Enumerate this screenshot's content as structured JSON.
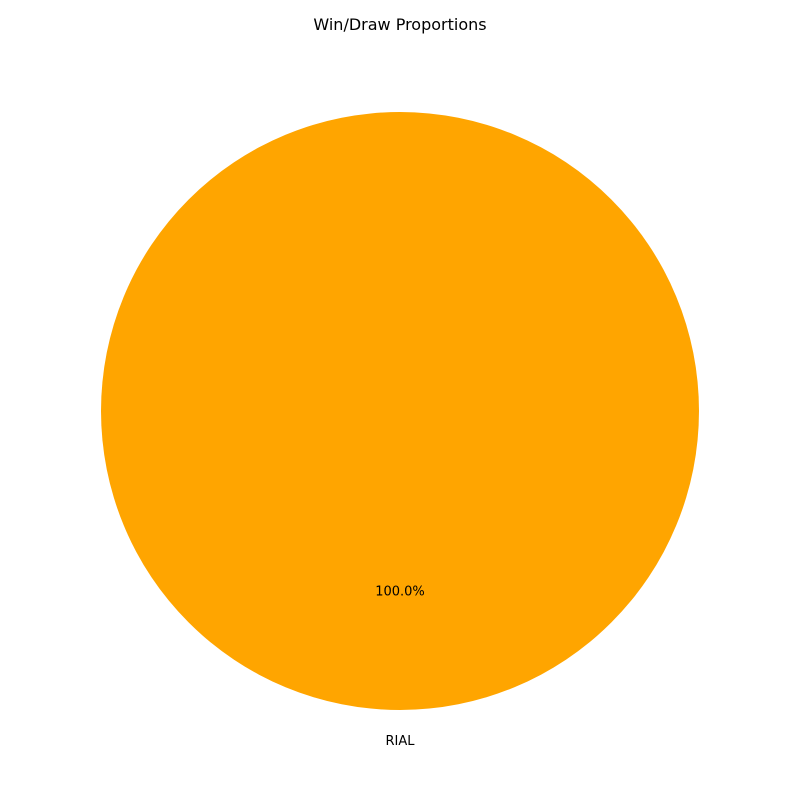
{
  "chart_data": {
    "type": "pie",
    "title": "Win/Draw Proportions",
    "slices": [
      {
        "label": "RIAL",
        "value": 100,
        "percent_label": "100.0%",
        "color": "#ffa500"
      }
    ],
    "legend": "none"
  }
}
